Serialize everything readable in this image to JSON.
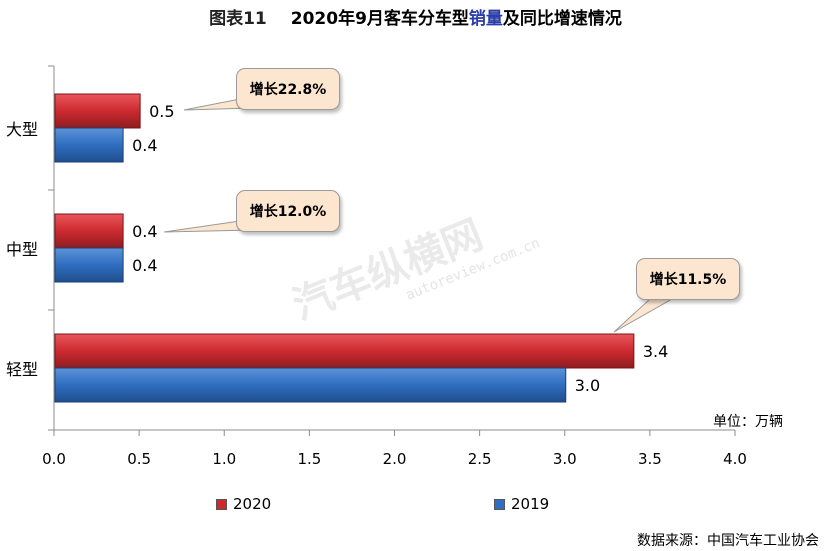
{
  "title": {
    "prefix": "图表11",
    "pre": "2020年9月客车分车型",
    "highlight": "销量",
    "post": "及同比增速情况"
  },
  "unit": "单位：万辆",
  "source": "数据来源：中国汽车工业协会",
  "watermark": {
    "text": "汽车纵横网",
    "url": "autoreview.com.cn"
  },
  "colors": {
    "s2020": "#cc2a2f",
    "s2019": "#2f6ec0",
    "callout_fill": "#fde6cf"
  },
  "chart_data": {
    "type": "bar",
    "orientation": "horizontal",
    "categories": [
      "大型",
      "中型",
      "轻型"
    ],
    "series": [
      {
        "name": "2020",
        "values": [
          0.5,
          0.4,
          3.4
        ],
        "labels": [
          "0.5",
          "0.4",
          "3.4"
        ]
      },
      {
        "name": "2019",
        "values": [
          0.4,
          0.4,
          3.0
        ],
        "labels": [
          "0.4",
          "0.4",
          "3.0"
        ]
      }
    ],
    "xlim": [
      0,
      4.0
    ],
    "xticks": [
      "0.0",
      "0.5",
      "1.0",
      "1.5",
      "2.0",
      "2.5",
      "3.0",
      "3.5",
      "4.0"
    ],
    "grid": false,
    "legend_position": "bottom",
    "annotations": [
      "增长22.8%",
      "增长12.0%",
      "增长11.5%"
    ]
  }
}
